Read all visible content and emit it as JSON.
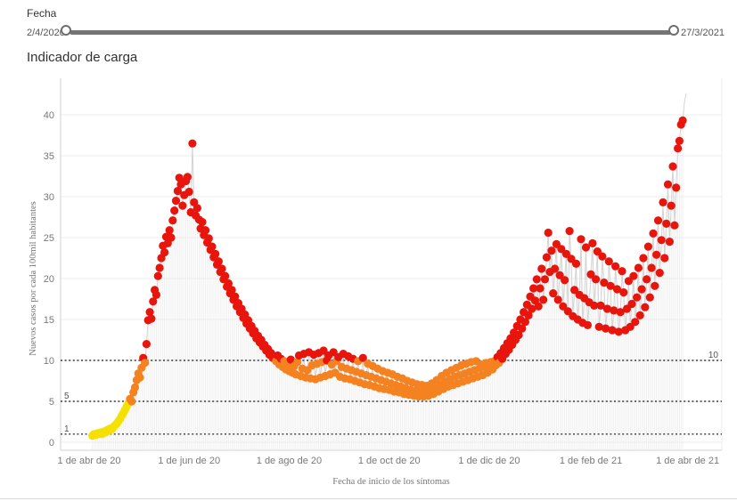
{
  "filter": {
    "label": "Fecha",
    "start_date": "2/4/2020",
    "end_date": "27/3/2021"
  },
  "title": "Indicador de carga",
  "chart_data": {
    "type": "scatter",
    "title": "Indicador de carga",
    "xlabel": "Fecha de inicio de los síntomas",
    "ylabel": "Nuevos casos por cada 100mil habitantes",
    "x_unit": "days_since_2020-04-01",
    "x_range_days": [
      0,
      365
    ],
    "ylim": [
      0,
      43
    ],
    "yticks": [
      0,
      5,
      10,
      15,
      20,
      25,
      30,
      35,
      40
    ],
    "xticks": [
      {
        "d": 0,
        "label": "1 de abr de 20"
      },
      {
        "d": 61,
        "label": "1 de jun de 20"
      },
      {
        "d": 122,
        "label": "1 de ago de 20"
      },
      {
        "d": 183,
        "label": "1 de oct de 20"
      },
      {
        "d": 244,
        "label": "1 de dic de 20"
      },
      {
        "d": 306,
        "label": "1 de feb de 21"
      },
      {
        "d": 365,
        "label": "1 de abr de 21"
      }
    ],
    "reference_lines": [
      {
        "value": 1,
        "label": "1",
        "label_side": "left"
      },
      {
        "value": 5,
        "label": "5",
        "label_side": "left"
      },
      {
        "value": 10,
        "label": "10",
        "label_side": "right"
      }
    ],
    "color_rules": [
      {
        "max": 5,
        "color": "#f5e003",
        "name": "amarillo"
      },
      {
        "max": 10,
        "color": "#f58220",
        "name": "naranja"
      },
      {
        "max": 1000,
        "color": "#e8150d",
        "name": "rojo"
      }
    ],
    "line_color": "#cfcfcf",
    "droplines_color": "#ebebeb",
    "grid_color": "#ececec",
    "axis_color": "#d0d0d0",
    "text_color": "#787878",
    "points": [
      [
        2,
        0.8
      ],
      [
        3,
        1.0
      ],
      [
        4,
        0.9
      ],
      [
        5,
        1.1
      ],
      [
        6,
        1.0
      ],
      [
        7,
        1.2
      ],
      [
        8,
        1.0
      ],
      [
        9,
        1.3
      ],
      [
        10,
        1.2
      ],
      [
        11,
        1.5
      ],
      [
        12,
        1.4
      ],
      [
        13,
        1.7
      ],
      [
        14,
        1.6
      ],
      [
        15,
        1.9
      ],
      [
        16,
        2.1
      ],
      [
        17,
        2.3
      ],
      [
        18,
        2.6
      ],
      [
        19,
        2.9
      ],
      [
        20,
        3.3
      ],
      [
        21,
        3.6
      ],
      [
        22,
        4.0
      ],
      [
        23,
        4.4
      ],
      [
        24,
        4.8
      ],
      [
        25,
        5.3
      ],
      [
        26,
        5.0
      ],
      [
        27,
        6.1
      ],
      [
        28,
        6.7
      ],
      [
        29,
        7.6
      ],
      [
        30,
        8.4
      ],
      [
        31,
        7.9
      ],
      [
        32,
        9.1
      ],
      [
        33,
        10.3
      ],
      [
        34,
        9.7
      ],
      [
        35,
        12.0
      ],
      [
        36,
        14.9
      ],
      [
        37,
        15.9
      ],
      [
        38,
        15.1
      ],
      [
        39,
        17.2
      ],
      [
        40,
        18.6
      ],
      [
        41,
        18.0
      ],
      [
        42,
        20.3
      ],
      [
        43,
        21.3
      ],
      [
        44,
        22.5
      ],
      [
        45,
        24.0
      ],
      [
        46,
        23.2
      ],
      [
        47,
        25.1
      ],
      [
        48,
        24.3
      ],
      [
        49,
        25.9
      ],
      [
        50,
        25.0
      ],
      [
        51,
        27.1
      ],
      [
        52,
        28.3
      ],
      [
        53,
        29.5
      ],
      [
        54,
        30.7
      ],
      [
        55,
        32.3
      ],
      [
        56,
        31.5
      ],
      [
        57,
        28.9
      ],
      [
        58,
        30.2
      ],
      [
        59,
        31.9
      ],
      [
        60,
        32.4
      ],
      [
        61,
        30.6
      ],
      [
        62,
        28.1
      ],
      [
        63,
        36.5
      ],
      [
        64,
        29.3
      ],
      [
        65,
        27.7
      ],
      [
        66,
        28.6
      ],
      [
        67,
        27.2
      ],
      [
        68,
        26.1
      ],
      [
        69,
        26.9
      ],
      [
        70,
        25.3
      ],
      [
        71,
        25.9
      ],
      [
        72,
        24.4
      ],
      [
        73,
        24.9
      ],
      [
        74,
        23.5
      ],
      [
        75,
        23.9
      ],
      [
        76,
        22.6
      ],
      [
        77,
        23.0
      ],
      [
        78,
        21.7
      ],
      [
        79,
        22.1
      ],
      [
        80,
        20.8
      ],
      [
        81,
        21.2
      ],
      [
        82,
        19.9
      ],
      [
        83,
        20.3
      ],
      [
        84,
        19.0
      ],
      [
        85,
        19.4
      ],
      [
        86,
        18.2
      ],
      [
        87,
        18.6
      ],
      [
        88,
        17.4
      ],
      [
        89,
        17.8
      ],
      [
        90,
        16.6
      ],
      [
        91,
        17.0
      ],
      [
        92,
        15.9
      ],
      [
        93,
        16.3
      ],
      [
        94,
        15.2
      ],
      [
        95,
        15.6
      ],
      [
        96,
        14.5
      ],
      [
        97,
        14.9
      ],
      [
        98,
        13.9
      ],
      [
        99,
        14.2
      ],
      [
        100,
        13.3
      ],
      [
        101,
        13.6
      ],
      [
        102,
        12.7
      ],
      [
        103,
        13.0
      ],
      [
        104,
        12.2
      ],
      [
        105,
        12.5
      ],
      [
        106,
        11.7
      ],
      [
        107,
        11.9
      ],
      [
        108,
        11.2
      ],
      [
        109,
        11.4
      ],
      [
        110,
        10.7
      ],
      [
        111,
        10.9
      ],
      [
        112,
        10.3
      ],
      [
        113,
        10.5
      ],
      [
        114,
        9.9
      ],
      [
        115,
        10.6
      ],
      [
        116,
        9.5
      ],
      [
        117,
        10.2
      ],
      [
        118,
        9.2
      ],
      [
        119,
        9.9
      ],
      [
        120,
        8.9
      ],
      [
        121,
        9.6
      ],
      [
        122,
        8.7
      ],
      [
        123,
        10.1
      ],
      [
        124,
        8.5
      ],
      [
        125,
        9.3
      ],
      [
        126,
        8.3
      ],
      [
        127,
        9.8
      ],
      [
        128,
        10.6
      ],
      [
        129,
        8.1
      ],
      [
        130,
        9.0
      ],
      [
        131,
        10.8
      ],
      [
        132,
        7.9
      ],
      [
        133,
        8.8
      ],
      [
        134,
        11.0
      ],
      [
        135,
        7.8
      ],
      [
        136,
        9.4
      ],
      [
        137,
        10.7
      ],
      [
        138,
        7.7
      ],
      [
        139,
        9.6
      ],
      [
        140,
        10.9
      ],
      [
        141,
        7.9
      ],
      [
        142,
        9.8
      ],
      [
        143,
        11.2
      ],
      [
        144,
        8.1
      ],
      [
        145,
        10.0
      ],
      [
        146,
        10.6
      ],
      [
        147,
        8.3
      ],
      [
        148,
        9.5
      ],
      [
        149,
        11.0
      ],
      [
        150,
        8.5
      ],
      [
        151,
        9.9
      ],
      [
        152,
        10.4
      ],
      [
        153,
        8.0
      ],
      [
        154,
        9.2
      ],
      [
        155,
        10.8
      ],
      [
        156,
        7.8
      ],
      [
        157,
        9.0
      ],
      [
        158,
        10.5
      ],
      [
        159,
        7.7
      ],
      [
        160,
        8.8
      ],
      [
        161,
        10.2
      ],
      [
        162,
        7.5
      ],
      [
        163,
        8.6
      ],
      [
        164,
        9.9
      ],
      [
        165,
        7.3
      ],
      [
        166,
        8.4
      ],
      [
        167,
        10.3
      ],
      [
        168,
        7.1
      ],
      [
        169,
        8.2
      ],
      [
        170,
        9.6
      ],
      [
        171,
        7.0
      ],
      [
        172,
        8.0
      ],
      [
        173,
        9.3
      ],
      [
        174,
        6.8
      ],
      [
        175,
        7.8
      ],
      [
        176,
        9.0
      ],
      [
        177,
        6.6
      ],
      [
        178,
        7.6
      ],
      [
        179,
        8.7
      ],
      [
        180,
        6.5
      ],
      [
        181,
        7.4
      ],
      [
        182,
        8.5
      ],
      [
        183,
        6.4
      ],
      [
        184,
        7.2
      ],
      [
        185,
        8.3
      ],
      [
        186,
        6.2
      ],
      [
        187,
        7.0
      ],
      [
        188,
        8.0
      ],
      [
        189,
        6.1
      ],
      [
        190,
        6.8
      ],
      [
        191,
        7.8
      ],
      [
        192,
        5.9
      ],
      [
        193,
        6.6
      ],
      [
        194,
        7.5
      ],
      [
        195,
        5.8
      ],
      [
        196,
        6.4
      ],
      [
        197,
        7.3
      ],
      [
        198,
        5.7
      ],
      [
        199,
        6.3
      ],
      [
        200,
        7.1
      ],
      [
        201,
        5.6
      ],
      [
        202,
        6.2
      ],
      [
        203,
        7.0
      ],
      [
        204,
        5.6
      ],
      [
        205,
        6.1
      ],
      [
        206,
        6.9
      ],
      [
        207,
        5.7
      ],
      [
        208,
        6.3
      ],
      [
        209,
        7.2
      ],
      [
        210,
        5.9
      ],
      [
        211,
        6.6
      ],
      [
        212,
        7.6
      ],
      [
        213,
        6.2
      ],
      [
        214,
        7.0
      ],
      [
        215,
        8.1
      ],
      [
        216,
        6.5
      ],
      [
        217,
        7.4
      ],
      [
        218,
        8.5
      ],
      [
        219,
        6.8
      ],
      [
        220,
        7.7
      ],
      [
        221,
        8.8
      ],
      [
        222,
        7.0
      ],
      [
        223,
        8.0
      ],
      [
        224,
        9.1
      ],
      [
        225,
        7.2
      ],
      [
        226,
        8.2
      ],
      [
        227,
        9.4
      ],
      [
        228,
        7.4
      ],
      [
        229,
        8.4
      ],
      [
        230,
        9.6
      ],
      [
        231,
        7.6
      ],
      [
        232,
        8.6
      ],
      [
        233,
        9.8
      ],
      [
        234,
        7.8
      ],
      [
        235,
        8.8
      ],
      [
        236,
        9.9
      ],
      [
        237,
        8.0
      ],
      [
        238,
        9.0
      ],
      [
        239,
        9.5
      ],
      [
        240,
        8.2
      ],
      [
        241,
        9.2
      ],
      [
        242,
        9.7
      ],
      [
        243,
        8.5
      ],
      [
        244,
        9.3
      ],
      [
        245,
        9.8
      ],
      [
        246,
        8.9
      ],
      [
        247,
        9.9
      ],
      [
        248,
        9.4
      ],
      [
        249,
        10.4
      ],
      [
        250,
        9.7
      ],
      [
        251,
        10.9
      ],
      [
        252,
        10.2
      ],
      [
        253,
        11.5
      ],
      [
        254,
        10.8
      ],
      [
        255,
        12.1
      ],
      [
        256,
        11.3
      ],
      [
        257,
        12.7
      ],
      [
        258,
        11.9
      ],
      [
        259,
        13.4
      ],
      [
        260,
        12.5
      ],
      [
        261,
        14.2
      ],
      [
        262,
        13.1
      ],
      [
        263,
        15.0
      ],
      [
        264,
        13.9
      ],
      [
        265,
        15.9
      ],
      [
        266,
        14.7
      ],
      [
        267,
        16.8
      ],
      [
        268,
        15.5
      ],
      [
        269,
        17.8
      ],
      [
        270,
        16.3
      ],
      [
        271,
        18.8
      ],
      [
        272,
        17.3
      ],
      [
        273,
        19.9
      ],
      [
        274,
        16.6
      ],
      [
        275,
        18.8
      ],
      [
        276,
        21.2
      ],
      [
        277,
        17.4
      ],
      [
        278,
        19.9
      ],
      [
        279,
        22.6
      ],
      [
        280,
        25.6
      ],
      [
        281,
        20.8
      ],
      [
        282,
        23.4
      ],
      [
        283,
        18.2
      ],
      [
        284,
        21.2
      ],
      [
        285,
        24.2
      ],
      [
        286,
        17.4
      ],
      [
        287,
        20.4
      ],
      [
        288,
        23.6
      ],
      [
        289,
        16.6
      ],
      [
        290,
        19.8
      ],
      [
        291,
        23.0
      ],
      [
        292,
        16.0
      ],
      [
        293,
        25.8
      ],
      [
        294,
        22.4
      ],
      [
        295,
        15.4
      ],
      [
        296,
        18.6
      ],
      [
        297,
        21.8
      ],
      [
        298,
        15.0
      ],
      [
        299,
        18.0
      ],
      [
        300,
        24.8
      ],
      [
        301,
        14.6
      ],
      [
        302,
        17.6
      ],
      [
        303,
        23.8
      ],
      [
        304,
        14.3
      ],
      [
        305,
        17.1
      ],
      [
        306,
        20.5
      ],
      [
        307,
        24.3
      ],
      [
        308,
        16.7
      ],
      [
        309,
        19.9
      ],
      [
        310,
        23.3
      ],
      [
        311,
        14.1
      ],
      [
        312,
        16.7
      ],
      [
        313,
        22.7
      ],
      [
        314,
        19.5
      ],
      [
        315,
        13.9
      ],
      [
        316,
        16.3
      ],
      [
        317,
        22.1
      ],
      [
        318,
        19.1
      ],
      [
        319,
        13.7
      ],
      [
        320,
        16.1
      ],
      [
        321,
        21.5
      ],
      [
        322,
        18.7
      ],
      [
        323,
        13.5
      ],
      [
        324,
        15.9
      ],
      [
        325,
        20.9
      ],
      [
        326,
        18.3
      ],
      [
        327,
        13.7
      ],
      [
        328,
        16.3
      ],
      [
        329,
        19.7
      ],
      [
        330,
        14.1
      ],
      [
        331,
        16.9
      ],
      [
        332,
        20.3
      ],
      [
        333,
        14.7
      ],
      [
        334,
        17.7
      ],
      [
        335,
        21.3
      ],
      [
        336,
        15.5
      ],
      [
        337,
        18.7
      ],
      [
        338,
        22.5
      ],
      [
        339,
        16.5
      ],
      [
        340,
        19.9
      ],
      [
        341,
        23.9
      ],
      [
        342,
        17.7
      ],
      [
        343,
        21.3
      ],
      [
        344,
        25.5
      ],
      [
        345,
        19.1
      ],
      [
        346,
        22.9
      ],
      [
        347,
        27.1
      ],
      [
        348,
        20.7
      ],
      [
        349,
        24.7
      ],
      [
        350,
        29.3
      ],
      [
        351,
        22.5
      ],
      [
        352,
        26.7
      ],
      [
        353,
        31.5
      ],
      [
        354,
        24.5
      ],
      [
        355,
        28.9
      ],
      [
        356,
        33.7
      ],
      [
        357,
        26.5
      ],
      [
        358,
        31.1
      ],
      [
        359,
        35.9
      ],
      [
        360,
        36.8
      ],
      [
        361,
        38.8
      ],
      [
        362,
        39.3
      ]
    ],
    "trail_line_only": [
      [
        363,
        41.4
      ],
      [
        364,
        42.6
      ]
    ]
  }
}
